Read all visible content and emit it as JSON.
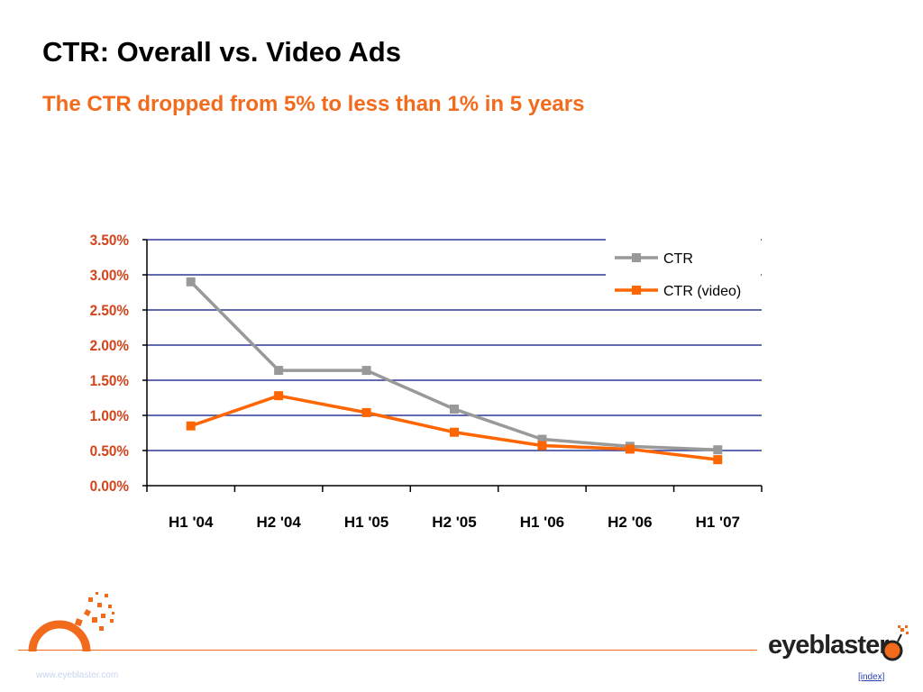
{
  "title": "CTR: Overall vs. Video Ads",
  "subtitle": "The CTR dropped from 5% to less than 1% in 5 years",
  "chart_data": {
    "type": "line",
    "categories": [
      "H1 '04",
      "H2 '04",
      "H1 '05",
      "H2 '05",
      "H1 '06",
      "H2 '06",
      "H1 '07"
    ],
    "series": [
      {
        "name": "CTR",
        "color": "#999999",
        "values": [
          2.9,
          1.64,
          1.64,
          1.09,
          0.66,
          0.56,
          0.51
        ]
      },
      {
        "name": "CTR (video)",
        "color": "#ff6600",
        "values": [
          0.85,
          1.28,
          1.04,
          0.76,
          0.57,
          0.52,
          0.37
        ]
      }
    ],
    "ylim": [
      0,
      3.5
    ],
    "yticks": [
      "0.00%",
      "0.50%",
      "1.00%",
      "1.50%",
      "2.00%",
      "2.50%",
      "3.00%",
      "3.50%"
    ],
    "grid": true,
    "legend": "top-right",
    "colors": {
      "grid": "#2e3a98",
      "tick_label": "#d2441a"
    }
  },
  "footer": {
    "url": "www.eyeblaster.com",
    "link": "[index]",
    "brand": "eyeblaster"
  },
  "colors": {
    "accent": "#f26b1d"
  }
}
